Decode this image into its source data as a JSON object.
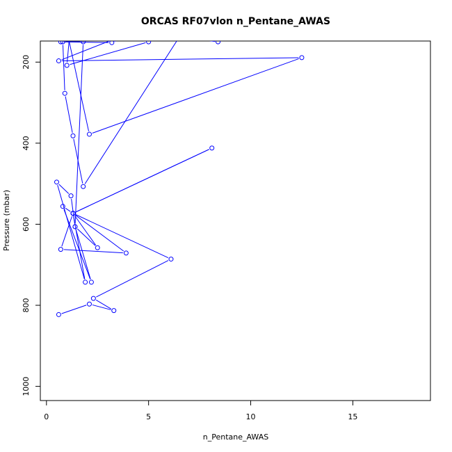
{
  "chart_data": {
    "type": "line",
    "title": "ORCAS RF07vlon n_Pentane_AWAS",
    "xlabel": "n_Pentane_AWAS",
    "ylabel": "Pressure (mbar)",
    "xlim": [
      -0.3,
      18.8
    ],
    "ylim": [
      1035,
      148
    ],
    "y_reversed": true,
    "x_ticks": [
      0,
      5,
      10,
      15
    ],
    "y_ticks": [
      200,
      400,
      600,
      800,
      1000
    ],
    "grid": false,
    "legend": "none",
    "color": "#0000ff",
    "series": [
      {
        "points": [
          [
            0.6,
            823
          ],
          [
            2.1,
            797
          ],
          [
            3.3,
            813
          ],
          [
            2.3,
            783
          ],
          [
            6.1,
            686
          ],
          [
            1.3,
            573
          ],
          [
            8.1,
            412
          ],
          [
            1.3,
            573
          ],
          [
            3.9,
            671
          ],
          [
            0.7,
            662
          ],
          [
            1.3,
            573
          ],
          [
            2.5,
            658
          ],
          [
            1.4,
            606
          ],
          [
            1.2,
            530
          ],
          [
            0.5,
            496
          ],
          [
            1.9,
            743
          ],
          [
            1.3,
            573
          ],
          [
            0.8,
            556
          ],
          [
            2.2,
            743
          ],
          [
            1.4,
            606
          ],
          [
            1.8,
            150
          ],
          [
            0.8,
            150
          ],
          [
            0.9,
            277
          ],
          [
            1.3,
            382
          ],
          [
            1.8,
            507
          ],
          [
            7.5,
            60
          ],
          [
            5.0,
            150
          ],
          [
            1.0,
            208
          ],
          [
            1.3,
            40
          ],
          [
            0.7,
            150
          ],
          [
            3.2,
            152
          ],
          [
            5.5,
            100
          ],
          [
            0.6,
            197
          ],
          [
            12.5,
            189
          ],
          [
            2.1,
            378
          ],
          [
            0.9,
            100
          ],
          [
            8.4,
            150
          ],
          [
            6.5,
            60
          ]
        ]
      }
    ]
  }
}
